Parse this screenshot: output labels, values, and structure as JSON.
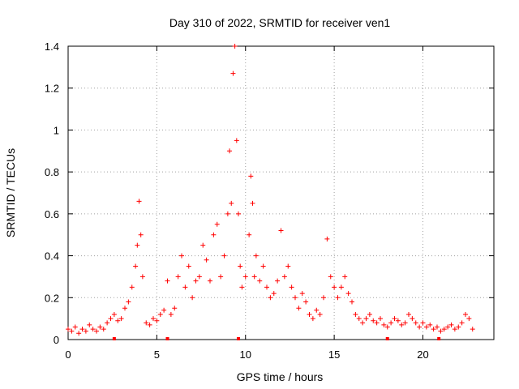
{
  "chart_data": {
    "type": "scatter",
    "title": "Day 310 of 2022, SRMTID for receiver ven1",
    "xlabel": "GPS time / hours",
    "ylabel": "SRMTID / TECUs",
    "xlim": [
      0,
      24
    ],
    "ylim": [
      0,
      1.4
    ],
    "x_ticks": [
      0,
      5,
      10,
      15,
      20
    ],
    "x_tick_labels": [
      "0",
      "5",
      "10",
      "15",
      "20"
    ],
    "y_ticks": [
      0,
      0.2,
      0.4,
      0.6,
      0.8,
      1,
      1.2,
      1.4
    ],
    "y_tick_labels": [
      "0",
      "0.2",
      "0.4",
      "0.6",
      "0.8",
      "1",
      "1.2",
      "1.4"
    ],
    "grid": true,
    "marker": "+",
    "series": [
      {
        "name": "ven1",
        "color": "#ff0000",
        "x": [
          0.0,
          0.2,
          0.4,
          0.6,
          0.8,
          1.0,
          1.2,
          1.4,
          1.6,
          1.8,
          2.0,
          2.2,
          2.4,
          2.6,
          2.8,
          3.0,
          3.2,
          3.4,
          3.6,
          3.8,
          3.9,
          4.0,
          4.1,
          4.2,
          4.4,
          4.6,
          4.8,
          5.0,
          5.2,
          5.4,
          5.6,
          5.8,
          6.0,
          6.2,
          6.4,
          6.6,
          6.8,
          7.0,
          7.2,
          7.4,
          7.6,
          7.8,
          8.0,
          8.2,
          8.4,
          8.6,
          8.8,
          9.0,
          9.1,
          9.2,
          9.3,
          9.4,
          9.5,
          9.6,
          9.7,
          9.8,
          10.0,
          10.2,
          10.3,
          10.4,
          10.5,
          10.6,
          10.8,
          11.0,
          11.2,
          11.4,
          11.6,
          11.8,
          12.0,
          12.2,
          12.4,
          12.6,
          12.8,
          13.0,
          13.2,
          13.4,
          13.6,
          13.8,
          14.0,
          14.2,
          14.4,
          14.6,
          14.8,
          15.0,
          15.2,
          15.4,
          15.6,
          15.8,
          16.0,
          16.2,
          16.4,
          16.6,
          16.8,
          17.0,
          17.2,
          17.4,
          17.6,
          17.8,
          18.0,
          18.2,
          18.4,
          18.6,
          18.8,
          19.0,
          19.2,
          19.4,
          19.6,
          19.8,
          20.0,
          20.2,
          20.4,
          20.6,
          20.8,
          21.0,
          21.2,
          21.4,
          21.6,
          21.8,
          22.0,
          22.2,
          22.4,
          22.6,
          22.8
        ],
        "y": [
          0.05,
          0.04,
          0.06,
          0.03,
          0.05,
          0.04,
          0.07,
          0.05,
          0.04,
          0.06,
          0.05,
          0.08,
          0.1,
          0.12,
          0.09,
          0.1,
          0.15,
          0.18,
          0.25,
          0.35,
          0.45,
          0.66,
          0.5,
          0.3,
          0.08,
          0.07,
          0.1,
          0.09,
          0.12,
          0.14,
          0.28,
          0.12,
          0.15,
          0.3,
          0.4,
          0.25,
          0.35,
          0.2,
          0.28,
          0.3,
          0.45,
          0.38,
          0.28,
          0.5,
          0.55,
          0.3,
          0.4,
          0.6,
          0.9,
          0.65,
          1.27,
          1.4,
          0.95,
          0.6,
          0.35,
          0.25,
          0.3,
          0.5,
          0.78,
          0.65,
          0.3,
          0.4,
          0.28,
          0.35,
          0.25,
          0.2,
          0.22,
          0.28,
          0.52,
          0.3,
          0.35,
          0.25,
          0.2,
          0.15,
          0.22,
          0.18,
          0.12,
          0.1,
          0.14,
          0.12,
          0.2,
          0.48,
          0.3,
          0.25,
          0.2,
          0.25,
          0.3,
          0.22,
          0.18,
          0.12,
          0.1,
          0.08,
          0.1,
          0.12,
          0.09,
          0.08,
          0.1,
          0.07,
          0.06,
          0.08,
          0.1,
          0.09,
          0.07,
          0.08,
          0.12,
          0.1,
          0.08,
          0.06,
          0.08,
          0.06,
          0.07,
          0.05,
          0.06,
          0.04,
          0.05,
          0.06,
          0.07,
          0.05,
          0.06,
          0.08,
          0.12,
          0.1,
          0.05
        ]
      }
    ],
    "axis_markers_x": [
      2.6,
      5.6,
      9.6,
      18.0,
      20.9
    ]
  }
}
